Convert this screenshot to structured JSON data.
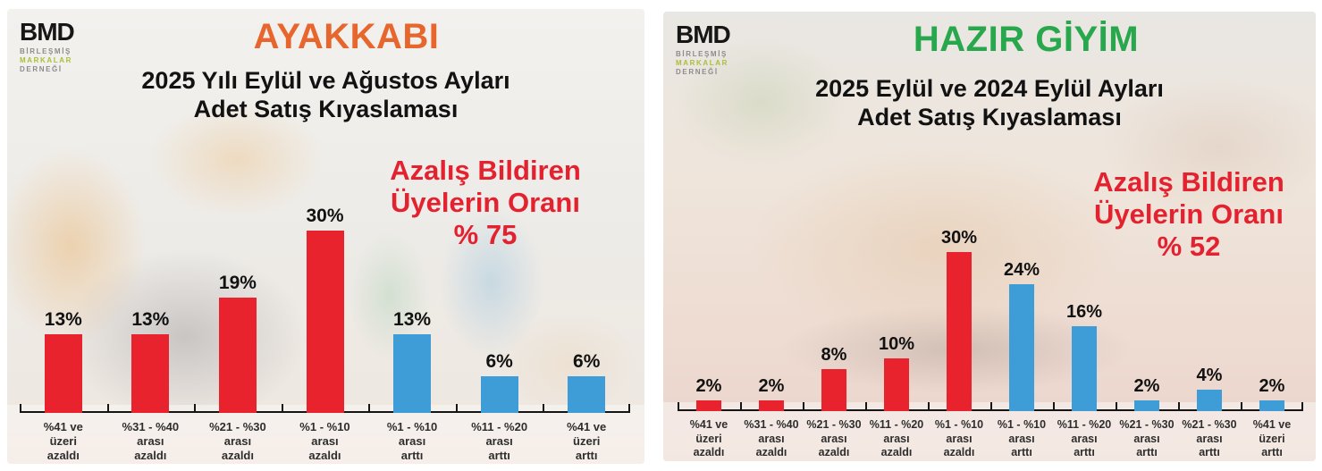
{
  "colors": {
    "bar_decrease_red": "#E8232D",
    "bar_increase_blue": "#3E9CD6",
    "annotation_red": "#E4212E",
    "axis_black": "#151515"
  },
  "panels": [
    {
      "logo": {
        "name": "BMD",
        "line1": "BİRLEŞMİŞ",
        "line2": "MARKALAR",
        "line3": "DERNEĞİ",
        "markalar_color": "#A9BF3B",
        "gray_color": "#8C8C8C"
      },
      "title": "AYAKKABI",
      "title_color": "#E7662D",
      "subtitle_line1": "2025 Yılı Eylül ve Ağustos Ayları",
      "subtitle_line2": "Adet Satış Kıyaslaması",
      "annotation_line1": "Azalış Bildiren",
      "annotation_line2": "Üyelerin Oranı",
      "annotation_line3": "% 75",
      "annotation_color": "#E4212E",
      "chart_data": {
        "type": "bar",
        "title": "AYAKKABI - 2025 Yılı Eylül ve Ağustos Ayları Adet Satış Kıyaslaması",
        "xlabel": "",
        "ylabel": "",
        "ylim": [
          0,
          33
        ],
        "grid": false,
        "legend": false,
        "categories": [
          "%41 ve üzeri azaldı",
          "%31 - %40 arası azaldı",
          "%21 - %30 arası azaldı",
          "%1 - %10 arası azaldı",
          "%1 - %10 arası arttı",
          "%11 - %20 arası arttı",
          "%41 ve üzeri arttı"
        ],
        "category_lines": [
          [
            "%41 ve",
            "üzeri",
            "azaldı"
          ],
          [
            "%31 - %40",
            "arası",
            "azaldı"
          ],
          [
            "%21 - %30",
            "arası",
            "azaldı"
          ],
          [
            "%1 - %10",
            "arası",
            "azaldı"
          ],
          [
            "%1 - %10",
            "arası",
            "arttı"
          ],
          [
            "%11 - %20",
            "arası",
            "arttı"
          ],
          [
            "%41 ve",
            "üzeri",
            "arttı"
          ]
        ],
        "values": [
          13,
          13,
          19,
          30,
          13,
          6,
          6
        ],
        "value_labels": [
          "13%",
          "13%",
          "19%",
          "30%",
          "13%",
          "6%",
          "6%"
        ],
        "bar_colors": [
          "#E8232D",
          "#E8232D",
          "#E8232D",
          "#E8232D",
          "#3E9CD6",
          "#3E9CD6",
          "#3E9CD6"
        ]
      }
    },
    {
      "logo": {
        "name": "BMD",
        "line1": "BİRLEŞMİŞ",
        "line2": "MARKALAR",
        "line3": "DERNEĞİ",
        "markalar_color": "#A9BF3B",
        "gray_color": "#8C8C8C"
      },
      "title": "HAZIR GİYİM",
      "title_color": "#28A74C",
      "subtitle_line1": "2025 Eylül ve 2024 Eylül Ayları",
      "subtitle_line2": "Adet Satış Kıyaslaması",
      "annotation_line1": "Azalış Bildiren",
      "annotation_line2": "Üyelerin Oranı",
      "annotation_line3": "% 52",
      "annotation_color": "#E4212E",
      "chart_data": {
        "type": "bar",
        "title": "HAZIR GİYİM - 2025 Eylül ve 2024 Eylül Ayları Adet Satış Kıyaslaması",
        "xlabel": "",
        "ylabel": "",
        "ylim": [
          0,
          33
        ],
        "grid": false,
        "legend": false,
        "categories": [
          "%41 ve üzeri azaldı",
          "%31 - %40 arası azaldı",
          "%21 - %30 arası azaldı",
          "%11 - %20 arası azaldı",
          "%1 - %10 arası azaldı",
          "%1 - %10 arası arttı",
          "%11 - %20 arası arttı",
          "%21 - %30 arası arttı",
          "%21 - %30 arası arttı",
          "%41 ve üzeri arttı"
        ],
        "category_lines": [
          [
            "%41 ve",
            "üzeri",
            "azaldı"
          ],
          [
            "%31 - %40",
            "arası",
            "azaldı"
          ],
          [
            "%21 - %30",
            "arası",
            "azaldı"
          ],
          [
            "%11 - %20",
            "arası",
            "azaldı"
          ],
          [
            "%1 - %10",
            "arası",
            "azaldı"
          ],
          [
            "%1 - %10",
            "arası",
            "arttı"
          ],
          [
            "%11 - %20",
            "arası",
            "arttı"
          ],
          [
            "%21 - %30",
            "arası",
            "arttı"
          ],
          [
            "%21 - %30",
            "arası",
            "arttı"
          ],
          [
            "%41 ve",
            "üzeri",
            "arttı"
          ]
        ],
        "values": [
          2,
          2,
          8,
          10,
          30,
          24,
          16,
          2,
          4,
          2
        ],
        "value_labels": [
          "2%",
          "2%",
          "8%",
          "10%",
          "30%",
          "24%",
          "16%",
          "2%",
          "4%",
          "2%"
        ],
        "bar_colors": [
          "#E8232D",
          "#E8232D",
          "#E8232D",
          "#E8232D",
          "#E8232D",
          "#3E9CD6",
          "#3E9CD6",
          "#3E9CD6",
          "#3E9CD6",
          "#3E9CD6"
        ]
      }
    }
  ]
}
